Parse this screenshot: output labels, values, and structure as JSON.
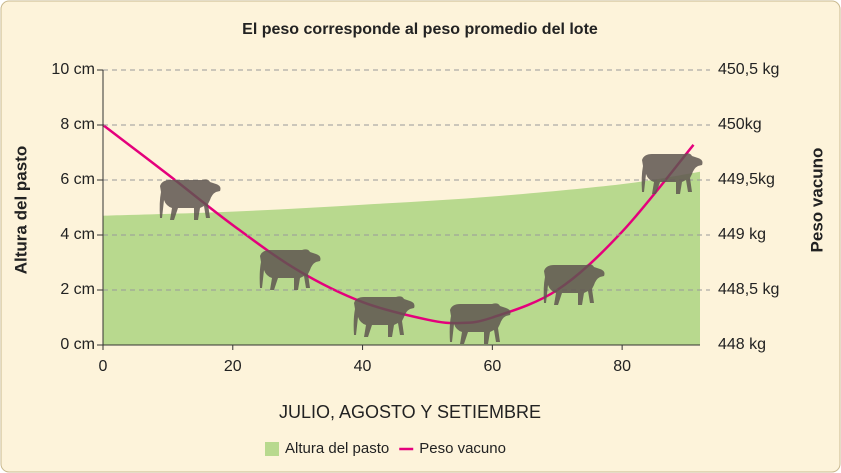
{
  "chart_data": {
    "type": "line",
    "title": "El peso corresponde al peso promedio del lote",
    "xlabel": "JULIO, AGOSTO Y SETIEMBRE",
    "ylabel": "Altura del pasto",
    "y2label": "Peso vacuno",
    "xlim": [
      0,
      92
    ],
    "xticks": [
      0,
      20,
      40,
      60,
      80
    ],
    "ylim": [
      0,
      10
    ],
    "yticks": [
      {
        "value": 0,
        "label": "0 cm"
      },
      {
        "value": 2,
        "label": "2 cm"
      },
      {
        "value": 4,
        "label": "4 cm"
      },
      {
        "value": 6,
        "label": "6 cm"
      },
      {
        "value": 8,
        "label": "8 cm"
      },
      {
        "value": 10,
        "label": "10 cm"
      }
    ],
    "y2lim": [
      448,
      450.5
    ],
    "y2ticks": [
      {
        "value": 448,
        "label": "448 kg"
      },
      {
        "value": 448.5,
        "label": "448,5 kg"
      },
      {
        "value": 449,
        "label": "449 kg"
      },
      {
        "value": 449.5,
        "label": "449,5kg"
      },
      {
        "value": 450,
        "label": "450kg"
      },
      {
        "value": 450.5,
        "label": "450,5 kg"
      }
    ],
    "grid": true,
    "series": [
      {
        "name": "Altura del pasto",
        "color": "#b8d98e",
        "kind": "area",
        "x": [
          0,
          20,
          40,
          60,
          80,
          92
        ],
        "values": [
          4.7,
          4.85,
          5.1,
          5.4,
          5.85,
          6.3
        ]
      },
      {
        "name": "Peso vacuno",
        "color": "#e4007c",
        "axis": "y2",
        "x": [
          0,
          10,
          20,
          30,
          40,
          50,
          55,
          60,
          70,
          80,
          91
        ],
        "values": [
          450.0,
          449.55,
          449.09,
          448.68,
          448.39,
          448.23,
          448.2,
          448.25,
          448.5,
          449.03,
          449.82
        ]
      }
    ]
  }
}
